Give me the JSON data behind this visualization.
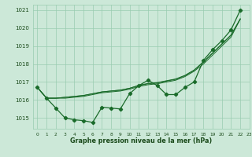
{
  "xlabel": "Graphe pression niveau de la mer (hPa)",
  "bg_color": "#cce8d8",
  "grid_color": "#99ccb0",
  "line_color": "#1a6b2a",
  "ylim": [
    1014.4,
    1021.3
  ],
  "xlim": [
    -0.5,
    23
  ],
  "yticks": [
    1015,
    1016,
    1017,
    1018,
    1019,
    1020,
    1021
  ],
  "xticks": [
    0,
    1,
    2,
    3,
    4,
    5,
    6,
    7,
    8,
    9,
    10,
    11,
    12,
    13,
    14,
    15,
    16,
    17,
    18,
    19,
    20,
    21,
    22,
    23
  ],
  "y_observed": [
    1016.7,
    1016.1,
    1015.55,
    1015.0,
    1014.9,
    1014.85,
    1014.75,
    1015.6,
    1015.55,
    1015.5,
    1016.35,
    1016.8,
    1017.1,
    1016.8,
    1016.3,
    1016.3,
    1016.7,
    1017.0,
    1018.2,
    1018.8,
    1019.3,
    1019.9,
    1021.0
  ],
  "y_fc1": [
    1016.7,
    1016.1,
    1016.1,
    1016.1,
    1016.15,
    1016.2,
    1016.3,
    1016.4,
    1016.45,
    1016.5,
    1016.6,
    1016.75,
    1016.85,
    1016.9,
    1017.0,
    1017.1,
    1017.3,
    1017.6,
    1018.0,
    1018.5,
    1019.0,
    1019.5,
    1020.5
  ],
  "y_fc2": [
    1016.7,
    1016.1,
    1016.1,
    1016.15,
    1016.2,
    1016.25,
    1016.35,
    1016.45,
    1016.5,
    1016.55,
    1016.65,
    1016.8,
    1016.9,
    1016.95,
    1017.05,
    1017.15,
    1017.35,
    1017.65,
    1018.1,
    1018.6,
    1019.1,
    1019.6,
    1020.5
  ],
  "y_fc3": [
    1016.7,
    1016.1,
    1016.1,
    1016.15,
    1016.2,
    1016.25,
    1016.35,
    1016.45,
    1016.5,
    1016.55,
    1016.65,
    1016.82,
    1016.92,
    1016.97,
    1017.07,
    1017.17,
    1017.37,
    1017.67,
    1018.12,
    1018.62,
    1019.12,
    1019.62,
    1020.52
  ]
}
